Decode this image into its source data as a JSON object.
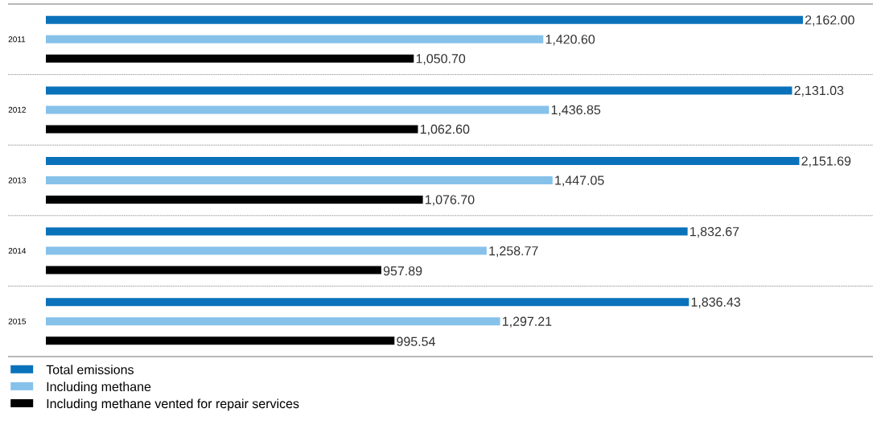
{
  "chart_data": {
    "type": "bar",
    "orientation": "horizontal",
    "categories": [
      "2011",
      "2012",
      "2013",
      "2014",
      "2015"
    ],
    "series": [
      {
        "name": "Total emissions",
        "color": "#0a72ba",
        "values": [
          2162.0,
          2131.03,
          2151.69,
          1832.67,
          1836.43
        ],
        "value_labels": [
          "2,162.00",
          "2,131.03",
          "2,151.69",
          "1,832.67",
          "1,836.43"
        ]
      },
      {
        "name": "Including methane",
        "color": "#86c1ea",
        "values": [
          1420.6,
          1436.85,
          1447.05,
          1258.77,
          1297.21
        ],
        "value_labels": [
          "1,420.60",
          "1,436.85",
          "1,447.05",
          "1,258.77",
          "1,297.21"
        ]
      },
      {
        "name": "Including methane vented for repair services",
        "color": "#000000",
        "values": [
          1050.7,
          1062.6,
          1076.7,
          957.89,
          995.54
        ],
        "value_labels": [
          "1,050.70",
          "1,062.60",
          "1,076.70",
          "957.89",
          "995.54"
        ]
      }
    ],
    "legend": "bottom"
  }
}
